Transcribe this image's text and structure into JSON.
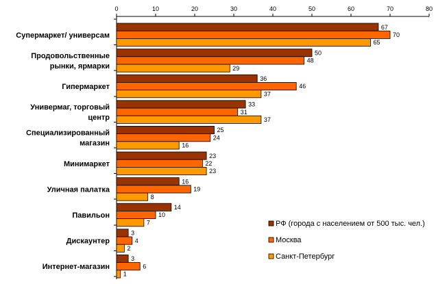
{
  "chart_data": {
    "type": "bar",
    "orientation": "horizontal",
    "title": "",
    "xlabel": "",
    "ylabel": "",
    "xlim": [
      0,
      80
    ],
    "x_ticks": [
      0,
      10,
      20,
      30,
      40,
      50,
      60,
      70,
      80
    ],
    "x_axis_position": "top",
    "grid": false,
    "legend_position": "right",
    "categories": [
      [
        "Супермаркет/ универсам"
      ],
      [
        "Продовольственные",
        "рынки, ярмарки"
      ],
      [
        "Гипермаркет"
      ],
      [
        "Универмаг, торговый",
        "центр"
      ],
      [
        "Специализированный",
        "магазин"
      ],
      [
        "Минимаркет"
      ],
      [
        "Уличная палатка"
      ],
      [
        "Павильон"
      ],
      [
        "Дискаунтер"
      ],
      [
        "Интернет-магазин"
      ]
    ],
    "series": [
      {
        "name": "РФ (города с населением от 500 тыс. чел.)",
        "color": "#993300",
        "values": [
          67,
          50,
          36,
          33,
          25,
          23,
          16,
          14,
          3,
          3
        ]
      },
      {
        "name": "Москва",
        "color": "#FF6600",
        "values": [
          70,
          48,
          46,
          31,
          24,
          22,
          19,
          10,
          4,
          6
        ]
      },
      {
        "name": "Санкт-Петербург",
        "color": "#FF9900",
        "values": [
          65,
          29,
          37,
          37,
          16,
          23,
          8,
          7,
          2,
          1
        ]
      }
    ]
  }
}
